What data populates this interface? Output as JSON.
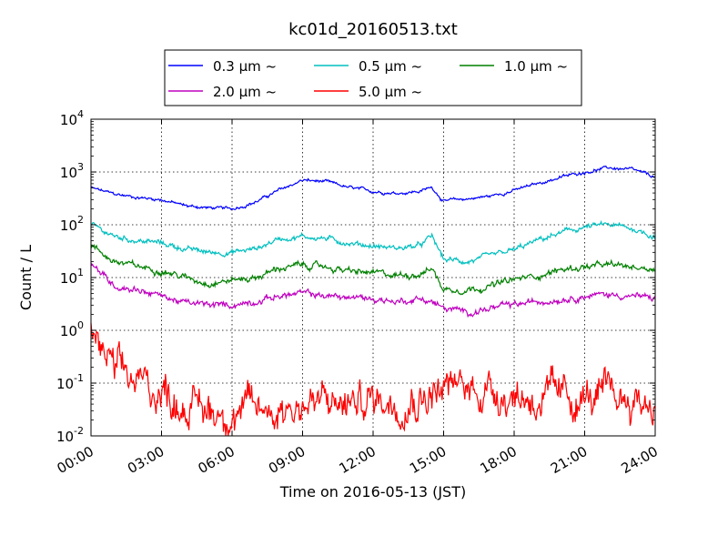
{
  "chart_data": {
    "type": "line",
    "title": "kc01d_20160513.txt",
    "xlabel": "Time on 2016-05-13 (JST)",
    "ylabel": "Count / L",
    "yscale": "log",
    "ylim": [
      0.01,
      10000
    ],
    "xlim": [
      "00:00",
      "24:00"
    ],
    "grid": true,
    "legend_position": "top-center",
    "x_tick_labels": [
      "00:00",
      "03:00",
      "06:00",
      "09:00",
      "12:00",
      "15:00",
      "18:00",
      "21:00",
      "24:00"
    ],
    "y_tick_labels": [
      {
        "base": "10",
        "exp": "-2"
      },
      {
        "base": "10",
        "exp": "-1"
      },
      {
        "base": "10",
        "exp": "0"
      },
      {
        "base": "10",
        "exp": "1"
      },
      {
        "base": "10",
        "exp": "2"
      },
      {
        "base": "10",
        "exp": "3"
      },
      {
        "base": "10",
        "exp": "4"
      }
    ],
    "x_hours": [
      0,
      1,
      2,
      3,
      4,
      5,
      6,
      7,
      8,
      9,
      10,
      11,
      12,
      13,
      14,
      14.5,
      15,
      16,
      17,
      18,
      19,
      20,
      21,
      22,
      23,
      24
    ],
    "series": [
      {
        "name": "0.3 μm ~",
        "color": "#0000ff",
        "noise": 0.03,
        "values": [
          500,
          380,
          330,
          300,
          230,
          210,
          200,
          270,
          450,
          700,
          650,
          500,
          430,
          400,
          430,
          520,
          280,
          310,
          350,
          450,
          600,
          800,
          1000,
          1200,
          1100,
          800
        ]
      },
      {
        "name": "0.5 μm ~",
        "color": "#00bfbf",
        "noise": 0.05,
        "values": [
          100,
          60,
          50,
          45,
          35,
          30,
          30,
          35,
          55,
          60,
          55,
          45,
          40,
          36,
          40,
          60,
          22,
          20,
          25,
          33,
          50,
          70,
          90,
          100,
          85,
          60
        ]
      },
      {
        "name": "1.0 μm ~",
        "color": "#008000",
        "noise": 0.06,
        "values": [
          40,
          20,
          16,
          14,
          10,
          8,
          9,
          10,
          15,
          17,
          16,
          13,
          12,
          11,
          12,
          15,
          6,
          6,
          7,
          9,
          11,
          14,
          16,
          17,
          16,
          15
        ]
      },
      {
        "name": "2.0 μm ~",
        "color": "#bf00bf",
        "noise": 0.06,
        "values": [
          18,
          7,
          6,
          4.5,
          3.3,
          3,
          3,
          3.6,
          4.5,
          5,
          4.5,
          4.2,
          4,
          3.5,
          4,
          3.5,
          2.6,
          2.2,
          2.6,
          3,
          3.5,
          4,
          4.5,
          4.8,
          4.5,
          4
        ]
      },
      {
        "name": "5.0 μm ~",
        "color": "#ff0000",
        "noise": 0.35,
        "values": [
          1,
          0.15,
          0.1,
          0.07,
          0.04,
          0.03,
          0.03,
          0.03,
          0.035,
          0.04,
          0.04,
          0.04,
          0.05,
          0.05,
          0.06,
          0.07,
          0.08,
          0.08,
          0.08,
          0.06,
          0.05,
          0.05,
          0.05,
          0.05,
          0.05,
          0.04
        ]
      }
    ]
  }
}
